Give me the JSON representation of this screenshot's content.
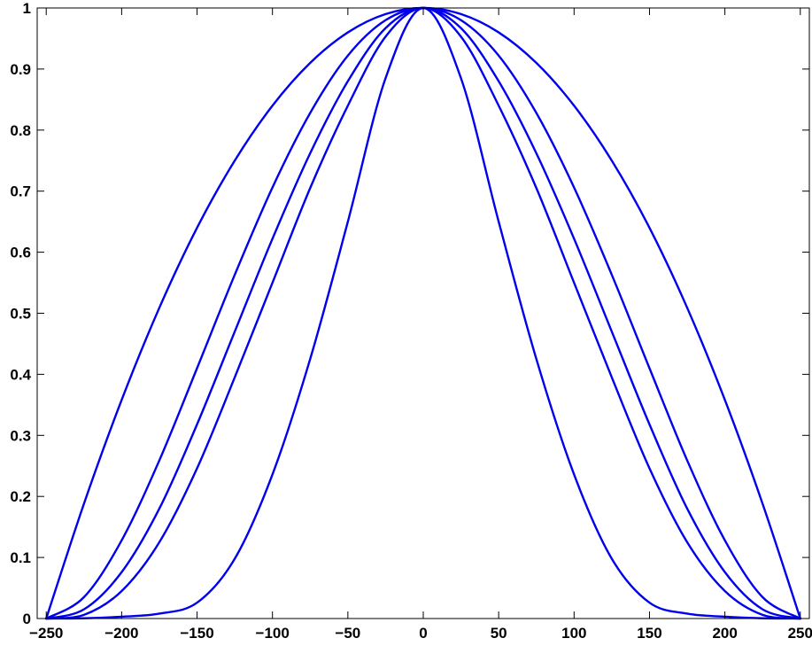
{
  "chart_data": {
    "type": "line",
    "title": "",
    "xlabel": "",
    "ylabel": "",
    "xlim": [
      -256,
      256
    ],
    "ylim": [
      0,
      1
    ],
    "grid": false,
    "line_color": "#0000ee",
    "x_ticks": [
      -250,
      -200,
      -150,
      -100,
      -50,
      0,
      50,
      100,
      150,
      200,
      250
    ],
    "x_tick_labels": [
      "−250",
      "−200",
      "−150",
      "−100",
      "−50",
      "0",
      "50",
      "100",
      "150",
      "200",
      "250"
    ],
    "y_ticks": [
      0,
      0.1,
      0.2,
      0.3,
      0.4,
      0.5,
      0.6,
      0.7,
      0.8,
      0.9,
      1
    ],
    "y_tick_labels": [
      "0",
      "0.1",
      "0.2",
      "0.3",
      "0.4",
      "0.5",
      "0.6",
      "0.7",
      "0.8",
      "0.9",
      "1"
    ],
    "series": [
      {
        "x": [
          -250,
          -225,
          -200,
          -175,
          -150,
          -125,
          -100,
          -75,
          -50,
          -25,
          0,
          25,
          50,
          75,
          100,
          125,
          150,
          175,
          200,
          225,
          250
        ],
        "y": [
          0.0,
          0.188,
          0.358,
          0.509,
          0.64,
          0.75,
          0.84,
          0.91,
          0.96,
          0.99,
          1.0,
          0.99,
          0.96,
          0.91,
          0.84,
          0.75,
          0.64,
          0.509,
          0.358,
          0.188,
          0.0
        ]
      },
      {
        "x": [
          -250,
          -225,
          -200,
          -175,
          -150,
          -125,
          -100,
          -75,
          -50,
          -25,
          0,
          25,
          50,
          75,
          100,
          125,
          150,
          175,
          200,
          225,
          250
        ],
        "y": [
          0.0,
          0.035,
          0.128,
          0.259,
          0.41,
          0.563,
          0.706,
          0.828,
          0.922,
          0.98,
          1.0,
          0.98,
          0.922,
          0.828,
          0.706,
          0.563,
          0.41,
          0.259,
          0.128,
          0.035,
          0.0
        ]
      },
      {
        "x": [
          -250,
          -225,
          -200,
          -175,
          -150,
          -125,
          -100,
          -75,
          -50,
          -25,
          0,
          25,
          50,
          75,
          100,
          125,
          150,
          175,
          200,
          225,
          250
        ],
        "y": [
          0.0,
          0.015,
          0.076,
          0.18,
          0.318,
          0.47,
          0.622,
          0.762,
          0.88,
          0.967,
          1.0,
          0.967,
          0.88,
          0.762,
          0.622,
          0.47,
          0.318,
          0.18,
          0.076,
          0.015,
          0.0
        ]
      },
      {
        "x": [
          -250,
          -225,
          -200,
          -175,
          -150,
          -125,
          -100,
          -75,
          -50,
          -25,
          0,
          25,
          50,
          75,
          100,
          125,
          150,
          175,
          200,
          225,
          250
        ],
        "y": [
          0.0,
          0.006,
          0.045,
          0.125,
          0.246,
          0.395,
          0.55,
          0.705,
          0.84,
          0.953,
          1.0,
          0.953,
          0.84,
          0.705,
          0.55,
          0.395,
          0.246,
          0.125,
          0.045,
          0.006,
          0.0
        ]
      },
      {
        "x": [
          -250,
          -225,
          -200,
          -175,
          -150,
          -125,
          -100,
          -75,
          -50,
          -25,
          0,
          25,
          50,
          75,
          100,
          125,
          150,
          175,
          200,
          225,
          250
        ],
        "y": [
          0.0,
          0.0005,
          0.003,
          0.008,
          0.026,
          0.098,
          0.236,
          0.425,
          0.65,
          0.885,
          1.0,
          0.885,
          0.65,
          0.425,
          0.236,
          0.098,
          0.026,
          0.008,
          0.003,
          0.0005,
          0.0
        ]
      }
    ]
  }
}
